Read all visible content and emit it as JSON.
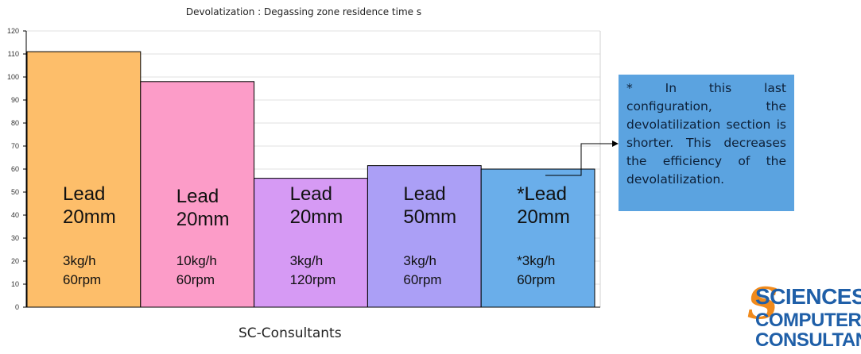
{
  "chart_data": {
    "type": "bar",
    "title": "Devolatization : Degassing zone residence time s",
    "xlabel": "",
    "ylabel": "",
    "ylim": [
      0,
      120
    ],
    "yticks": [
      0,
      10,
      20,
      30,
      40,
      50,
      60,
      70,
      80,
      90,
      100,
      110,
      120
    ],
    "grid": true,
    "bars": [
      {
        "value": 111,
        "color": "#fdbe6a",
        "label_line1": "Lead",
        "label_line2": "20mm",
        "label_line3": "3kg/h",
        "label_line4": "60rpm"
      },
      {
        "value": 98,
        "color": "#fc9cc8",
        "label_line1": "Lead",
        "label_line2": "20mm",
        "label_line3": "10kg/h",
        "label_line4": "60rpm"
      },
      {
        "value": 56,
        "color": "#d69af4",
        "label_line1": "Lead",
        "label_line2": "20mm",
        "label_line3": "3kg/h",
        "label_line4": "120rpm"
      },
      {
        "value": 61.5,
        "color": "#ab9ff6",
        "label_line1": "Lead",
        "label_line2": "50mm",
        "label_line3": "3kg/h",
        "label_line4": "60rpm"
      },
      {
        "value": 60,
        "color": "#6aaeea",
        "label_line1": "*Lead",
        "label_line2": "20mm",
        "label_line3": "*3kg/h",
        "label_line4": "60rpm"
      }
    ]
  },
  "credit": "SC-Consultants",
  "note": "* In this last configuration, the devolatilization section is shorter. This decreases the efficiency of the devolatilization.",
  "logo": {
    "line1": "SCIENCES",
    "line2": "COMPUTERS",
    "line3": "CONSULTANTS"
  },
  "colors": {
    "note_bg": "#5ba3e0",
    "logo_blue": "#1f5fa8",
    "logo_orange": "#f08a1c"
  }
}
